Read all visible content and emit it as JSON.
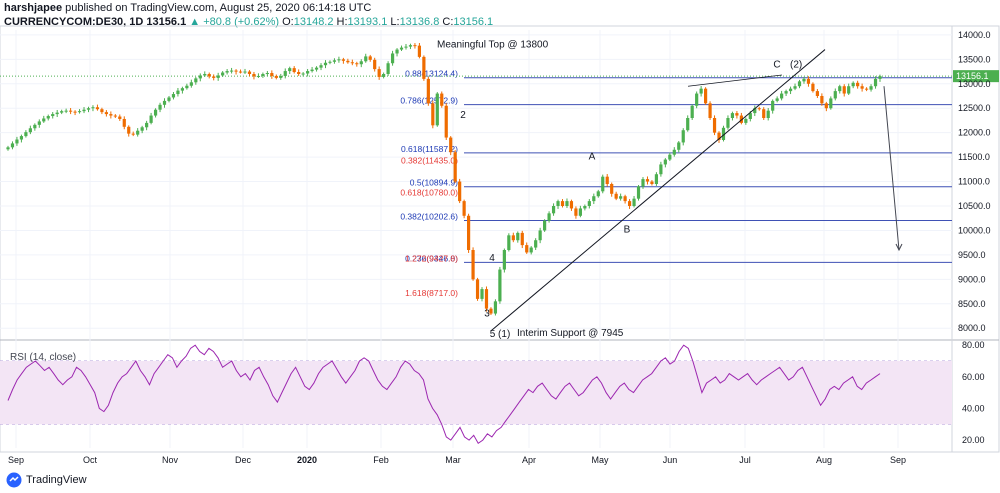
{
  "header": {
    "author": "harshjapee",
    "published_text": "published on TradingView.com, August 25, 2020 06:14:18 UTC",
    "symbol": "CURRENCYCOM:DE30, 1D",
    "price": "13156.1",
    "change": "▲ +80.8 (+0.62%)",
    "o_label": "O:",
    "o_value": "13148.2",
    "h_label": "H:",
    "h_value": "13193.1",
    "l_label": "L:",
    "l_value": "13136.8",
    "c_label": "C:",
    "c_value": "13156.1"
  },
  "footer": {
    "brand": "TradingView"
  },
  "colors": {
    "up": "#4caf50",
    "down": "#ef6c00",
    "fib_line": "#3f51b5",
    "price_line": "#4caf50",
    "rsi_line": "#9c27b0",
    "rsi_band": "#f3e5f5",
    "fib_red": "#e53935",
    "fib_blue": "#1e3ab5"
  },
  "chart_data": [
    {
      "type": "candlestick",
      "title": "",
      "y_ticks": [
        "8000.0",
        "8500.0",
        "9000.0",
        "9500.0",
        "10000.0",
        "10500.0",
        "11000.0",
        "11500.0",
        "12000.0",
        "12500.0",
        "13000.0",
        "13500.0",
        "14000.0"
      ],
      "ylim": [
        7800,
        14100
      ],
      "x_ticks": [
        "Sep",
        "Oct",
        "Nov",
        "Dec",
        "2020",
        "Feb",
        "Mar",
        "Apr",
        "May",
        "Jun",
        "Jul",
        "Aug",
        "Sep"
      ],
      "last_price_label": "13156.1",
      "closes": [
        11700,
        11780,
        11860,
        11930,
        12010,
        12090,
        12160,
        12230,
        12290,
        12340,
        12380,
        12410,
        12440,
        12450,
        12430,
        12420,
        12440,
        12470,
        12500,
        12520,
        12480,
        12420,
        12380,
        12350,
        12330,
        12280,
        12120,
        11980,
        11960,
        12040,
        12110,
        12200,
        12350,
        12470,
        12570,
        12650,
        12720,
        12790,
        12860,
        12910,
        12960,
        13030,
        13110,
        13170,
        13200,
        13150,
        13120,
        13170,
        13230,
        13260,
        13270,
        13250,
        13240,
        13250,
        13200,
        13150,
        13160,
        13200,
        13220,
        13160,
        13120,
        13160,
        13260,
        13320,
        13240,
        13200,
        13210,
        13260,
        13290,
        13330,
        13380,
        13430,
        13450,
        13480,
        13500,
        13470,
        13440,
        13420,
        13400,
        13460,
        13560,
        13490,
        13300,
        13140,
        13200,
        13420,
        13620,
        13700,
        13740,
        13760,
        13790,
        13780,
        13550,
        13100,
        12600,
        12150,
        12800,
        12550,
        11900,
        11600,
        11000,
        10600,
        10300,
        9600,
        9000,
        8600,
        8800,
        8400,
        8300,
        8550,
        9200,
        9600,
        9900,
        9800,
        9950,
        9700,
        9550,
        9650,
        9800,
        10000,
        10200,
        10350,
        10500,
        10600,
        10500,
        10600,
        10450,
        10300,
        10450,
        10500,
        10600,
        10700,
        10800,
        11100,
        10950,
        10750,
        10650,
        10700,
        10600,
        10500,
        10650,
        10900,
        11050,
        11000,
        10950,
        11150,
        11350,
        11450,
        11550,
        11650,
        11800,
        12050,
        12300,
        12550,
        12800,
        12900,
        12600,
        12300,
        12000,
        11850,
        12100,
        12300,
        12400,
        12350,
        12200,
        12280,
        12400,
        12500,
        12480,
        12300,
        12450,
        12650,
        12700,
        12800,
        12850,
        12900,
        12950,
        13050,
        13100,
        13000,
        12850,
        12750,
        12600,
        12500,
        12700,
        12850,
        12950,
        12800,
        12950,
        13020,
        12950,
        12900,
        12880,
        12950,
        13100,
        13156.1
      ],
      "fib_levels": [
        {
          "label": "0.88(13124.4)",
          "value": 13124.4
        },
        {
          "label": "0.786(12572.9)",
          "value": 12572.9
        },
        {
          "label": "0.618(11587.2)",
          "value": 11587.2
        },
        {
          "label": "0.5(10894.9)",
          "value": 10894.9
        },
        {
          "label": "0.382(10202.6)",
          "value": 10202.6
        },
        {
          "label": "0.236(9346.0)",
          "value": 9346.0
        }
      ],
      "fib_ext": [
        {
          "label": "0.382(11435.0)",
          "value": 11435.0
        },
        {
          "label": "0.618(10780.0)",
          "value": 10780.0
        },
        {
          "label": "1.272(9427.8)",
          "value": 9427.8
        },
        {
          "label": "1.618(8717.0)",
          "value": 8717.0
        }
      ],
      "annotations": [
        {
          "text": "Meaningful Top @ 13800"
        },
        {
          "text": "Interim Support @ 7945"
        },
        {
          "text": "2"
        },
        {
          "text": "3"
        },
        {
          "text": "4"
        },
        {
          "text": "5 (1)"
        },
        {
          "text": "A"
        },
        {
          "text": "B"
        },
        {
          "text": "C"
        },
        {
          "text": "(2)"
        }
      ]
    },
    {
      "type": "line",
      "title": "RSI (14, close)",
      "y_ticks": [
        "20.00",
        "40.00",
        "60.00",
        "80.00"
      ],
      "ylim": [
        15,
        82
      ],
      "band": [
        30,
        70
      ],
      "values": [
        45,
        52,
        58,
        62,
        66,
        68,
        70,
        67,
        64,
        66,
        62,
        58,
        55,
        58,
        60,
        66,
        64,
        60,
        55,
        50,
        40,
        38,
        42,
        50,
        56,
        60,
        62,
        66,
        70,
        64,
        60,
        55,
        62,
        66,
        70,
        74,
        72,
        66,
        70,
        73,
        78,
        80,
        76,
        74,
        78,
        76,
        72,
        66,
        68,
        70,
        64,
        60,
        62,
        58,
        64,
        66,
        60,
        55,
        48,
        44,
        50,
        56,
        62,
        66,
        60,
        54,
        52,
        56,
        62,
        66,
        68,
        70,
        65,
        60,
        56,
        60,
        64,
        70,
        72,
        70,
        64,
        58,
        54,
        52,
        56,
        60,
        66,
        70,
        68,
        64,
        62,
        58,
        46,
        40,
        36,
        30,
        22,
        20,
        24,
        28,
        22,
        20,
        23,
        18,
        20,
        24,
        22,
        26,
        28,
        32,
        36,
        40,
        44,
        48,
        52,
        50,
        54,
        56,
        52,
        48,
        46,
        50,
        54,
        56,
        52,
        48,
        50,
        54,
        58,
        60,
        56,
        50,
        46,
        50,
        54,
        56,
        52,
        50,
        54,
        58,
        60,
        62,
        66,
        70,
        72,
        68,
        70,
        76,
        80,
        78,
        70,
        60,
        50,
        56,
        58,
        60,
        56,
        58,
        62,
        60,
        58,
        60,
        62,
        58,
        55,
        58,
        60,
        62,
        64,
        66,
        62,
        58,
        60,
        64,
        66,
        60,
        54,
        48,
        42,
        46,
        52,
        54,
        52,
        56,
        58,
        60,
        54,
        52,
        56,
        58,
        60,
        62
      ]
    }
  ]
}
